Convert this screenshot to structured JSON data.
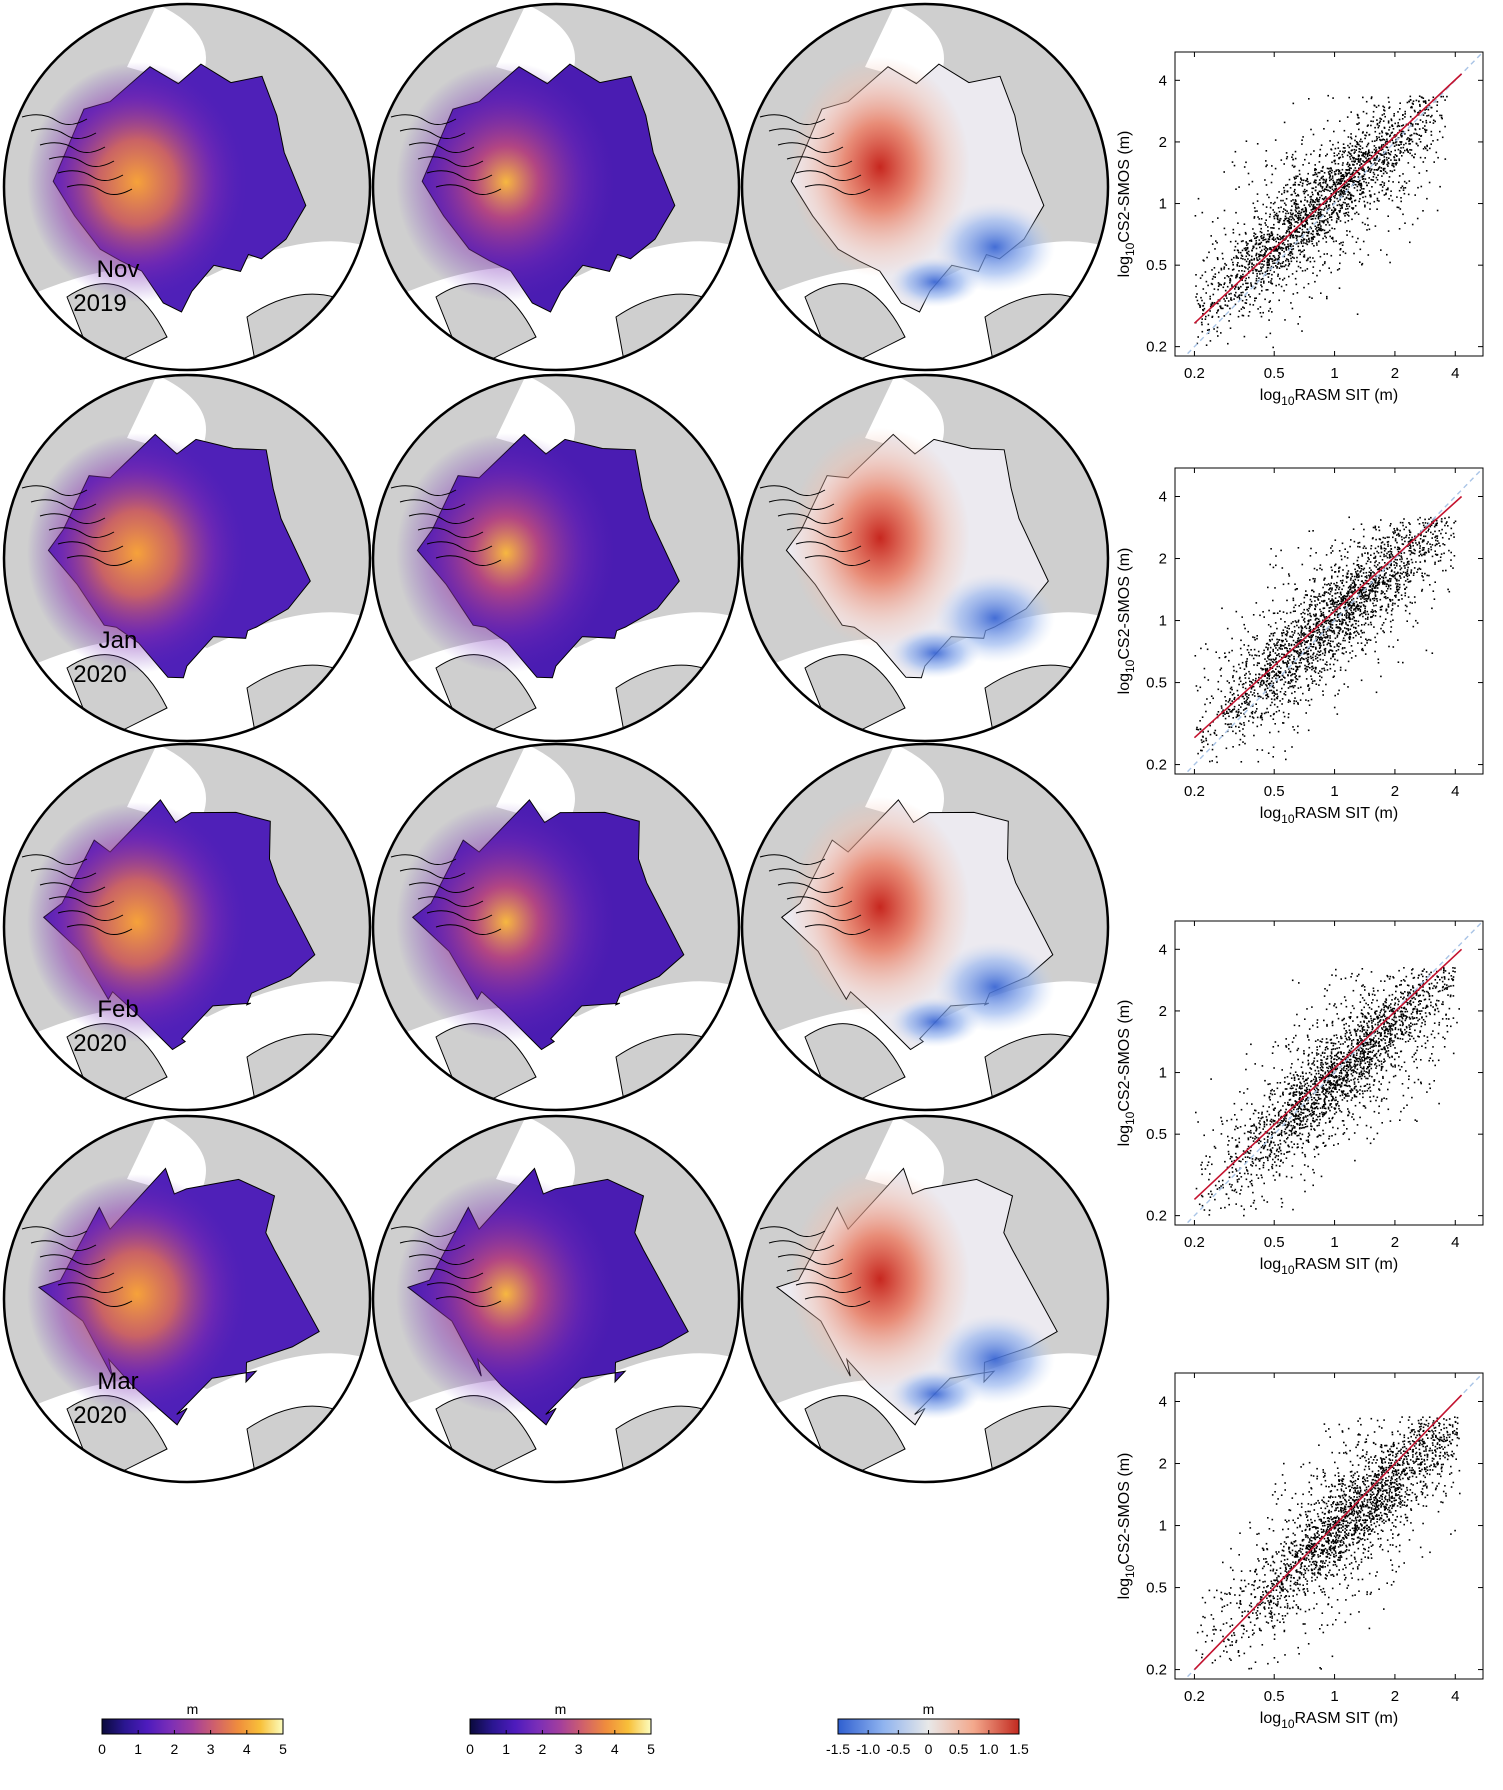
{
  "colors": {
    "land": "#cfcfcf",
    "ocean_no_ice": "#ffffff",
    "coast": "#000000",
    "scatter_points": "#000000",
    "fit_line": "#c4122e",
    "one_to_one_line": "#a9c4e6",
    "thickness_ramp": [
      "#0a0a3c",
      "#2a1690",
      "#4e1bbd",
      "#7a2eb8",
      "#a43f9c",
      "#d0616b",
      "#ef8c3d",
      "#f8c03a",
      "#fcfdbf"
    ],
    "difference_ramp": [
      "#2f5fd0",
      "#8fb3ef",
      "#e8e8e8",
      "#f3a88c",
      "#c22a20"
    ]
  },
  "rows": [
    {
      "month": "Nov",
      "year": "2019"
    },
    {
      "month": "Jan",
      "year": "2020"
    },
    {
      "month": "Feb",
      "year": "2020"
    },
    {
      "month": "Mar",
      "year": "2020"
    }
  ],
  "colorbars": [
    {
      "unit": "m",
      "ticks": [
        "0",
        "1",
        "2",
        "3",
        "4",
        "5"
      ],
      "palette": "thickness_a"
    },
    {
      "unit": "m",
      "ticks": [
        "0",
        "1",
        "2",
        "3",
        "4",
        "5"
      ],
      "palette": "thickness_b"
    },
    {
      "unit": "m",
      "ticks": [
        "-1.5",
        "-1.0",
        "-0.5",
        "0",
        "0.5",
        "1.0",
        "1.5"
      ],
      "palette": "difference"
    }
  ],
  "chart_data": [
    {
      "type": "scatter",
      "panel": "Nov 2019",
      "xlabel_base": "log",
      "xlabel_sub": "10",
      "xlabel_rest": "RASM SIT (m)",
      "ylabel_base": "log",
      "ylabel_sub": "10",
      "ylabel_rest": "CS2-SMOS (m)",
      "x_scale": "log",
      "y_scale": "log",
      "xlim": [
        0.16,
        5.5
      ],
      "ylim": [
        0.18,
        5.5
      ],
      "xticks": [
        0.2,
        0.5,
        1,
        2,
        4
      ],
      "xticklabels": [
        "0.2",
        "0.5",
        "1",
        "2",
        "4"
      ],
      "yticks": [
        0.2,
        0.5,
        1,
        2,
        4
      ],
      "yticklabels": [
        "0.2",
        "0.5",
        "1",
        "2",
        "4"
      ],
      "fit_line": [
        [
          0.2,
          0.26
        ],
        [
          4.3,
          4.3
        ]
      ],
      "one_to_one_line": [
        [
          0.16,
          0.16
        ],
        [
          5.5,
          5.5
        ]
      ],
      "cloud": {
        "center": [
          0.85,
          1.0
        ],
        "spread_x": 0.75,
        "spread_y": 0.6,
        "x_range": [
          0.2,
          3.6
        ],
        "y_range": [
          0.2,
          3.4
        ]
      },
      "grid": false
    },
    {
      "type": "scatter",
      "panel": "Jan 2020",
      "xlabel_base": "log",
      "xlabel_sub": "10",
      "xlabel_rest": "RASM SIT (m)",
      "ylabel_base": "log",
      "ylabel_sub": "10",
      "ylabel_rest": "CS2-SMOS (m)",
      "x_scale": "log",
      "y_scale": "log",
      "xlim": [
        0.16,
        5.5
      ],
      "ylim": [
        0.18,
        5.5
      ],
      "xticks": [
        0.2,
        0.5,
        1,
        2,
        4
      ],
      "xticklabels": [
        "0.2",
        "0.5",
        "1",
        "2",
        "4"
      ],
      "yticks": [
        0.2,
        0.5,
        1,
        2,
        4
      ],
      "yticklabels": [
        "0.2",
        "0.5",
        "1",
        "2",
        "4"
      ],
      "fit_line": [
        [
          0.2,
          0.27
        ],
        [
          4.3,
          4.0
        ]
      ],
      "one_to_one_line": [
        [
          0.16,
          0.16
        ],
        [
          5.5,
          5.5
        ]
      ],
      "cloud": {
        "center": [
          1.0,
          1.05
        ],
        "spread_x": 0.8,
        "spread_y": 0.6,
        "x_range": [
          0.2,
          4.0
        ],
        "y_range": [
          0.2,
          3.2
        ]
      },
      "grid": false
    },
    {
      "type": "scatter",
      "panel": "Feb 2020",
      "xlabel_base": "log",
      "xlabel_sub": "10",
      "xlabel_rest": "RASM SIT (m)",
      "ylabel_base": "log",
      "ylabel_sub": "10",
      "ylabel_rest": "CS2-SMOS (m)",
      "x_scale": "log",
      "y_scale": "log",
      "xlim": [
        0.16,
        5.5
      ],
      "ylim": [
        0.18,
        5.5
      ],
      "xticks": [
        0.2,
        0.5,
        1,
        2,
        4
      ],
      "xticklabels": [
        "0.2",
        "0.5",
        "1",
        "2",
        "4"
      ],
      "yticks": [
        0.2,
        0.5,
        1,
        2,
        4
      ],
      "yticklabels": [
        "0.2",
        "0.5",
        "1",
        "2",
        "4"
      ],
      "fit_line": [
        [
          0.2,
          0.24
        ],
        [
          4.3,
          4.0
        ]
      ],
      "one_to_one_line": [
        [
          0.16,
          0.16
        ],
        [
          5.5,
          5.5
        ]
      ],
      "cloud": {
        "center": [
          1.15,
          1.1
        ],
        "spread_x": 0.75,
        "spread_y": 0.6,
        "x_range": [
          0.2,
          4.2
        ],
        "y_range": [
          0.2,
          3.3
        ]
      },
      "grid": false
    },
    {
      "type": "scatter",
      "panel": "Mar 2020",
      "xlabel_base": "log",
      "xlabel_sub": "10",
      "xlabel_rest": "RASM SIT (m)",
      "ylabel_base": "log",
      "ylabel_sub": "10",
      "ylabel_rest": "CS2-SMOS (m)",
      "x_scale": "log",
      "y_scale": "log",
      "xlim": [
        0.16,
        5.5
      ],
      "ylim": [
        0.18,
        5.5
      ],
      "xticks": [
        0.2,
        0.5,
        1,
        2,
        4
      ],
      "xticklabels": [
        "0.2",
        "0.5",
        "1",
        "2",
        "4"
      ],
      "yticks": [
        0.2,
        0.5,
        1,
        2,
        4
      ],
      "yticklabels": [
        "0.2",
        "0.5",
        "1",
        "2",
        "4"
      ],
      "fit_line": [
        [
          0.2,
          0.2
        ],
        [
          4.3,
          4.3
        ]
      ],
      "one_to_one_line": [
        [
          0.16,
          0.16
        ],
        [
          5.5,
          5.5
        ]
      ],
      "cloud": {
        "center": [
          1.25,
          1.15
        ],
        "spread_x": 0.7,
        "spread_y": 0.6,
        "x_range": [
          0.2,
          4.2
        ],
        "y_range": [
          0.2,
          3.4
        ]
      },
      "grid": false
    }
  ]
}
